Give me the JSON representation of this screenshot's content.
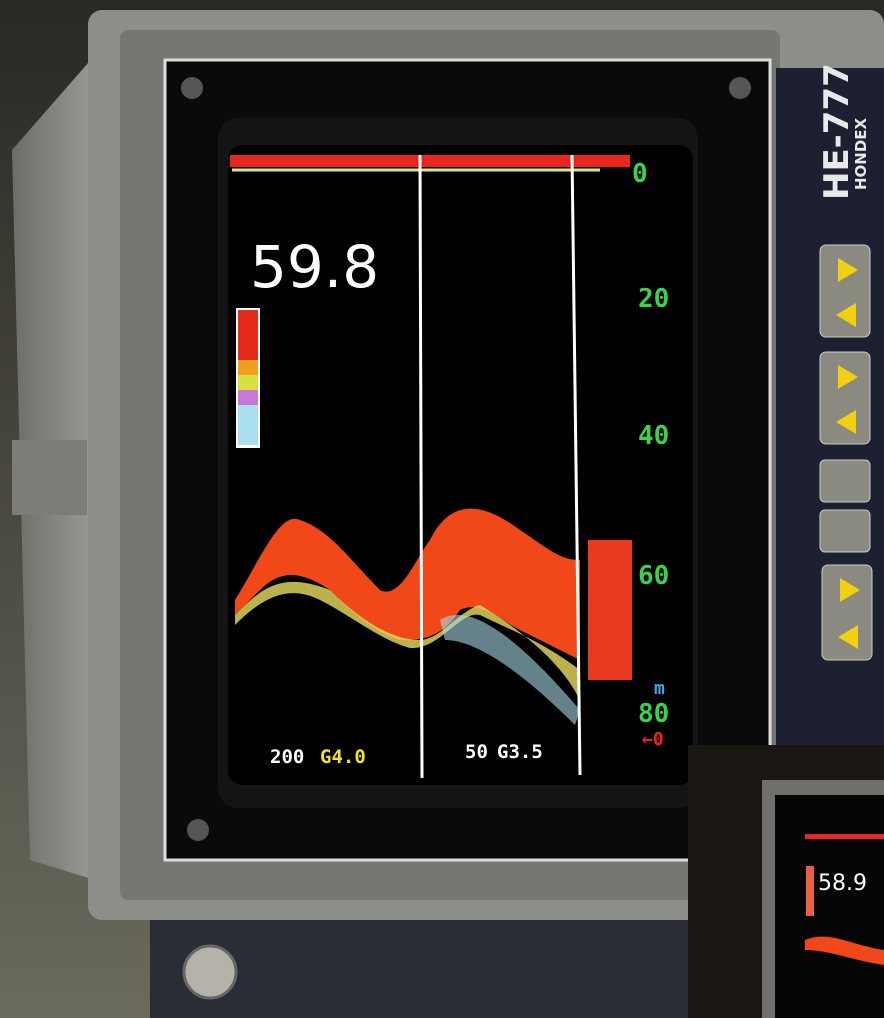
{
  "screen": {
    "depth": "59.8",
    "scale": [
      "0",
      "20",
      "40",
      "60",
      "80"
    ],
    "unit": "m",
    "shift": "0",
    "left_range": "200",
    "left_gain": "G4.0",
    "right_range": "50",
    "right_gain": "G3.5"
  },
  "brand": {
    "model": "HE-777",
    "maker": "HONDEX"
  },
  "inset": {
    "depth": "58.9"
  }
}
